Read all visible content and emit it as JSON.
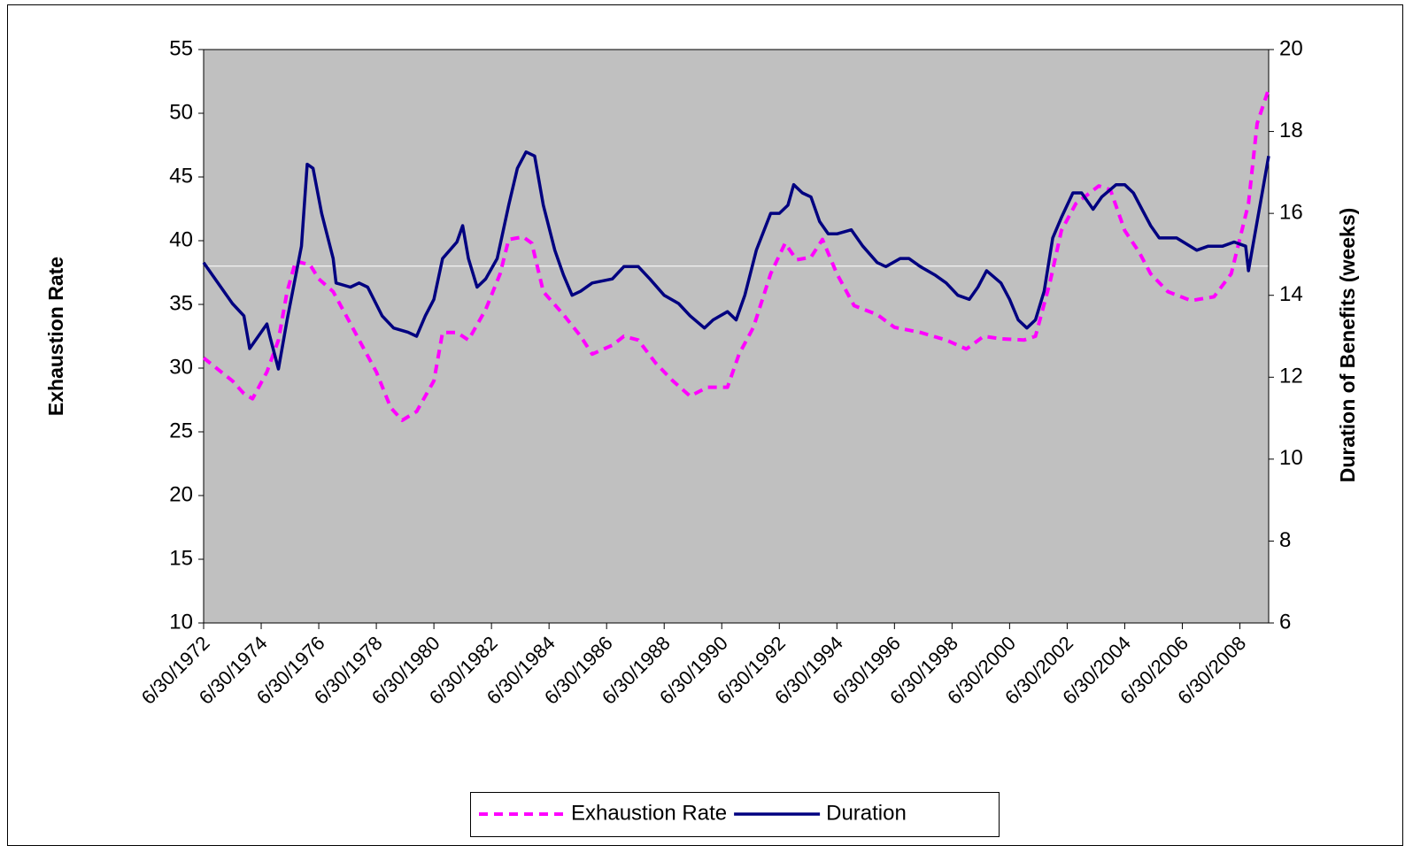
{
  "chart_data": {
    "type": "line",
    "xlim": [
      1972.5,
      2009.5
    ],
    "xticks": [
      {
        "value": 1972.5,
        "label": "6/30/1972"
      },
      {
        "value": 1974.5,
        "label": "6/30/1974"
      },
      {
        "value": 1976.5,
        "label": "6/30/1976"
      },
      {
        "value": 1978.5,
        "label": "6/30/1978"
      },
      {
        "value": 1980.5,
        "label": "6/30/1980"
      },
      {
        "value": 1982.5,
        "label": "6/30/1982"
      },
      {
        "value": 1984.5,
        "label": "6/30/1984"
      },
      {
        "value": 1986.5,
        "label": "6/30/1986"
      },
      {
        "value": 1988.5,
        "label": "6/30/1988"
      },
      {
        "value": 1990.5,
        "label": "6/30/1990"
      },
      {
        "value": 1992.5,
        "label": "6/30/1992"
      },
      {
        "value": 1994.5,
        "label": "6/30/1994"
      },
      {
        "value": 1996.5,
        "label": "6/30/1996"
      },
      {
        "value": 1998.5,
        "label": "6/30/1998"
      },
      {
        "value": 2000.5,
        "label": "6/30/2000"
      },
      {
        "value": 2002.5,
        "label": "6/30/2002"
      },
      {
        "value": 2004.5,
        "label": "6/30/2004"
      },
      {
        "value": 2006.5,
        "label": "6/30/2006"
      },
      {
        "value": 2008.5,
        "label": "6/30/2008"
      }
    ],
    "ylabel": "Exhaustion Rate",
    "ylim": [
      10,
      55
    ],
    "yticks": [
      10,
      15,
      20,
      25,
      30,
      35,
      40,
      45,
      50,
      55
    ],
    "y2label": "Duration of Benefits (weeks)",
    "y2lim": [
      6,
      20
    ],
    "y2ticks": [
      6,
      8,
      10,
      12,
      14,
      16,
      18,
      20
    ],
    "reference_line": 38,
    "plot_background": "#c0c0c0",
    "series": [
      {
        "name": "Exhaustion Rate",
        "color": "#ff00ff",
        "dashed": true,
        "x": [
          1972.5,
          1973.5,
          1973.9,
          1974.2,
          1974.7,
          1975.1,
          1975.4,
          1975.7,
          1976.2,
          1976.5,
          1977.0,
          1977.6,
          1978.0,
          1978.5,
          1979.0,
          1979.4,
          1979.9,
          1980.5,
          1980.8,
          1981.3,
          1981.7,
          1982.3,
          1982.8,
          1983.1,
          1983.6,
          1983.9,
          1984.3,
          1985.0,
          1985.6,
          1986.0,
          1986.7,
          1987.1,
          1987.6,
          1988.2,
          1988.8,
          1989.4,
          1990.0,
          1990.7,
          1991.1,
          1991.6,
          1992.2,
          1992.7,
          1993.1,
          1993.6,
          1994.0,
          1994.5,
          1995.1,
          1995.9,
          1996.5,
          1997.4,
          1998.3,
          1999.0,
          1999.6,
          2000.2,
          2001.0,
          2001.4,
          2001.9,
          2002.3,
          2002.8,
          2003.6,
          2004.0,
          2004.5,
          2005.0,
          2005.4,
          2006.0,
          2006.8,
          2007.6,
          2008.2,
          2008.8,
          2009.1,
          2009.5
        ],
        "values": [
          30.8,
          29.0,
          28.0,
          27.6,
          29.7,
          32.2,
          36.0,
          38.4,
          38.1,
          37.0,
          36.0,
          33.5,
          31.8,
          29.7,
          26.9,
          25.9,
          26.6,
          29.0,
          32.8,
          32.8,
          32.2,
          34.6,
          37.4,
          40.1,
          40.3,
          39.8,
          36.0,
          34.2,
          32.5,
          31.1,
          31.8,
          32.5,
          32.2,
          30.4,
          29.0,
          27.8,
          28.5,
          28.5,
          31.1,
          33.2,
          37.4,
          39.8,
          38.5,
          38.7,
          40.1,
          37.4,
          34.9,
          34.2,
          33.2,
          32.8,
          32.2,
          31.5,
          32.5,
          32.3,
          32.2,
          32.5,
          36.7,
          40.8,
          42.9,
          44.3,
          44.0,
          40.8,
          39.1,
          37.4,
          36.0,
          35.3,
          35.6,
          37.4,
          42.9,
          49.2,
          51.9
        ]
      },
      {
        "name": "Duration",
        "color": "#000080",
        "axis": "y2",
        "x": [
          1972.5,
          1973.5,
          1973.9,
          1974.1,
          1974.7,
          1974.8,
          1975.1,
          1975.4,
          1975.9,
          1976.1,
          1976.3,
          1976.6,
          1977.0,
          1977.1,
          1977.6,
          1977.9,
          1978.2,
          1978.7,
          1979.1,
          1979.6,
          1979.9,
          1980.2,
          1980.5,
          1980.8,
          1981.3,
          1981.5,
          1981.7,
          1982.0,
          1982.3,
          1982.7,
          1983.1,
          1983.4,
          1983.7,
          1984.0,
          1984.3,
          1984.7,
          1985.0,
          1985.3,
          1985.6,
          1986.0,
          1986.7,
          1987.1,
          1987.6,
          1988.0,
          1988.5,
          1989.0,
          1989.4,
          1989.9,
          1990.2,
          1990.7,
          1991.0,
          1991.3,
          1991.7,
          1992.2,
          1992.5,
          1992.8,
          1993.0,
          1993.3,
          1993.6,
          1993.9,
          1994.2,
          1994.5,
          1995.0,
          1995.4,
          1995.9,
          1996.2,
          1996.7,
          1997.0,
          1997.4,
          1997.9,
          1998.3,
          1998.7,
          1999.1,
          1999.4,
          1999.7,
          2000.2,
          2000.5,
          2000.8,
          2001.1,
          2001.4,
          2001.7,
          2002.0,
          2002.3,
          2002.7,
          2003.0,
          2003.4,
          2003.7,
          2004.2,
          2004.5,
          2004.8,
          2005.1,
          2005.4,
          2005.7,
          2006.3,
          2007.0,
          2007.4,
          2007.9,
          2008.3,
          2008.7,
          2008.8,
          2009.0,
          2009.3,
          2009.5
        ],
        "values": [
          14.8,
          13.8,
          13.5,
          12.7,
          13.3,
          13.0,
          12.2,
          13.4,
          15.2,
          17.2,
          17.1,
          16.0,
          14.9,
          14.3,
          14.2,
          14.3,
          14.2,
          13.5,
          13.2,
          13.1,
          13.0,
          13.5,
          13.9,
          14.9,
          15.3,
          15.7,
          14.9,
          14.2,
          14.4,
          14.9,
          16.2,
          17.1,
          17.5,
          17.4,
          16.2,
          15.1,
          14.5,
          14.0,
          14.1,
          14.3,
          14.4,
          14.7,
          14.7,
          14.4,
          14.0,
          13.8,
          13.5,
          13.2,
          13.4,
          13.6,
          13.4,
          14.0,
          15.1,
          16.0,
          16.0,
          16.2,
          16.7,
          16.5,
          16.4,
          15.8,
          15.5,
          15.5,
          15.6,
          15.2,
          14.8,
          14.7,
          14.9,
          14.9,
          14.7,
          14.5,
          14.3,
          14.0,
          13.9,
          14.2,
          14.6,
          14.3,
          13.9,
          13.4,
          13.2,
          13.4,
          14.1,
          15.4,
          15.9,
          16.5,
          16.5,
          16.1,
          16.4,
          16.7,
          16.7,
          16.5,
          16.1,
          15.7,
          15.4,
          15.4,
          15.1,
          15.2,
          15.2,
          15.3,
          15.2,
          14.6,
          15.4,
          16.6,
          17.4
        ]
      }
    ]
  }
}
